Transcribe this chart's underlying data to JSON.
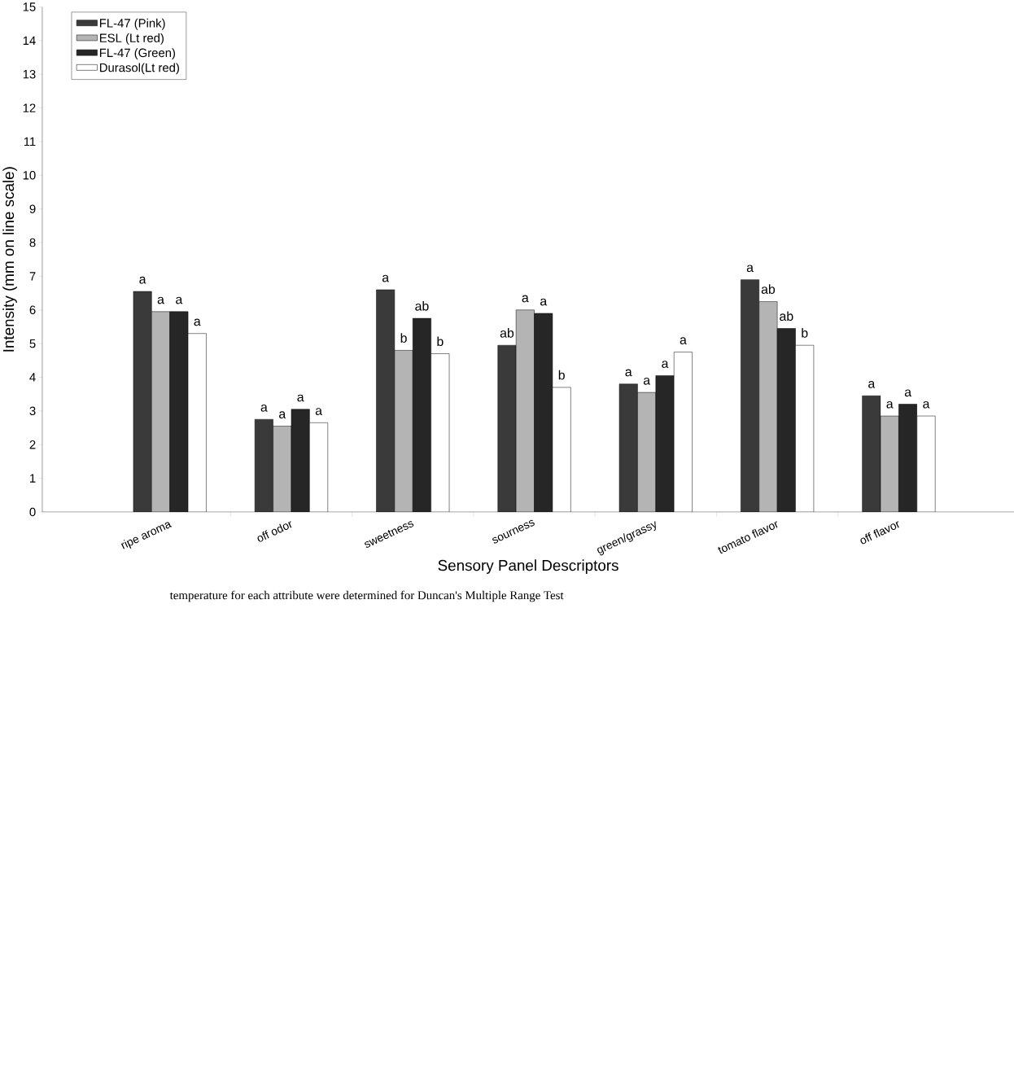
{
  "chart_data": {
    "type": "bar",
    "annotations": [
      "temperature for each attribute were determined for Duncan's Multiple Range Test"
    ],
    "xlabel": "Sensory Panel Descriptors",
    "ylabel": "Intensity (mm on line scale)",
    "categories": [
      "ripe aroma",
      "off odor",
      "sweetness",
      "sourness",
      "green/grassy",
      "tomato flavor",
      "off flavor"
    ],
    "series": [
      {
        "name": "FL-47 (Pink)",
        "color": "#3a3a3a",
        "values": [
          6.55,
          2.75,
          6.6,
          4.95,
          3.8,
          6.9,
          3.45
        ],
        "value_labels": [
          "a",
          "a",
          "a",
          "ab",
          "a",
          "a",
          "a"
        ]
      },
      {
        "name": "ESL (Lt red)",
        "color": "#b4b4b4",
        "values": [
          5.95,
          2.55,
          4.8,
          6.0,
          3.55,
          6.25,
          2.85
        ],
        "value_labels": [
          "a",
          "a",
          "b",
          "a",
          "a",
          "ab",
          "a"
        ]
      },
      {
        "name": "FL-47 (Green)",
        "color": "#262626",
        "values": [
          5.95,
          3.05,
          5.75,
          5.9,
          4.05,
          5.45,
          3.2
        ],
        "value_labels": [
          "a",
          "a",
          "ab",
          "a",
          "a",
          "ab",
          "a"
        ]
      },
      {
        "name": "Durasol(Lt red)",
        "color": "#ffffff",
        "values": [
          5.3,
          2.65,
          4.7,
          3.7,
          4.75,
          4.95,
          2.85
        ],
        "value_labels": [
          "a",
          "a",
          "b",
          "b",
          "a",
          "b",
          "a"
        ]
      }
    ],
    "ylim": [
      0,
      15
    ],
    "yticks": [
      0,
      1,
      2,
      3,
      4,
      5,
      6,
      7,
      8,
      9,
      10,
      11,
      12,
      13,
      14,
      15
    ],
    "legend": "top left",
    "grid": false
  }
}
